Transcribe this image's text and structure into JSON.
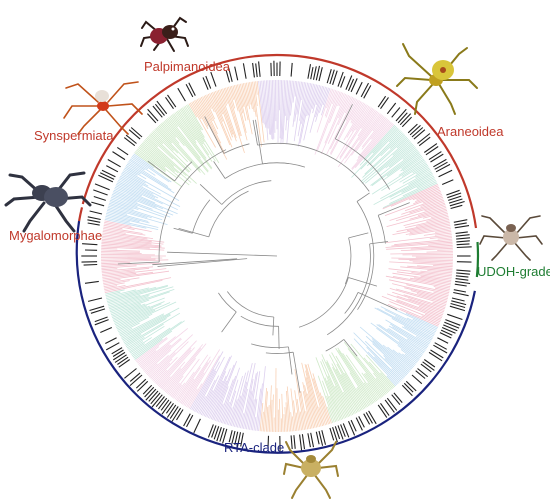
{
  "figure": {
    "clades": [
      {
        "key": "palpimanoidea",
        "label": "Palpimanoidea",
        "color": "#c0392b"
      },
      {
        "key": "araneoidea",
        "label": "Araneoidea",
        "color": "#c0392b"
      },
      {
        "key": "synspermiata",
        "label": "Synspermiata",
        "color": "#c0392b"
      },
      {
        "key": "mygalomorphae",
        "label": "Mygalomorphae",
        "color": "#c0392b"
      },
      {
        "key": "udoh",
        "label": "UDOH-grade",
        "color": "#1e7d32"
      },
      {
        "key": "rta",
        "label": "RTA-clade",
        "color": "#1a237e"
      }
    ],
    "branch_palette": [
      "#f2b8c6",
      "#b8d8f0",
      "#c8e6c0",
      "#f7c9a9",
      "#d8c8ec",
      "#f2d0e4",
      "#b9e3d6"
    ],
    "icons": [
      "jumping-spider-icon",
      "orb-weaver-spider-icon",
      "tarantula-spider-icon",
      "crab-spider-icon",
      "grass-spider-icon",
      "synspermiata-spider-icon"
    ]
  }
}
